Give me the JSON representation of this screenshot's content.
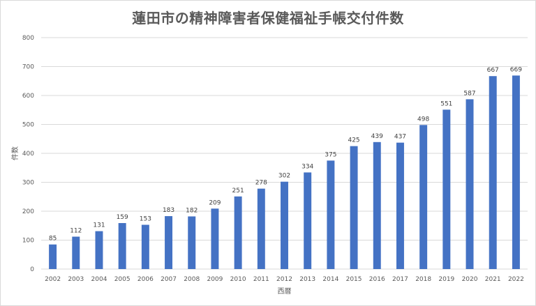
{
  "chart_data": {
    "type": "bar",
    "title": "蓮田市の精神障害者保健福祉手帳交付件数",
    "xlabel": "西暦",
    "ylabel": "件数",
    "categories": [
      "2002",
      "2003",
      "2004",
      "2005",
      "2006",
      "2007",
      "2008",
      "2009",
      "2010",
      "2011",
      "2012",
      "2013",
      "2014",
      "2015",
      "2016",
      "2017",
      "2018",
      "2019",
      "2020",
      "2021",
      "2022"
    ],
    "values": [
      85,
      112,
      131,
      159,
      153,
      183,
      182,
      209,
      251,
      278,
      302,
      334,
      375,
      425,
      439,
      437,
      498,
      551,
      587,
      667,
      669
    ],
    "ylim": [
      0,
      800
    ],
    "yticks": [
      0,
      100,
      200,
      300,
      400,
      500,
      600,
      700,
      800
    ],
    "grid": true,
    "legend": "none",
    "bar_color": "#4472C4",
    "grid_color": "#d9d9d9"
  }
}
